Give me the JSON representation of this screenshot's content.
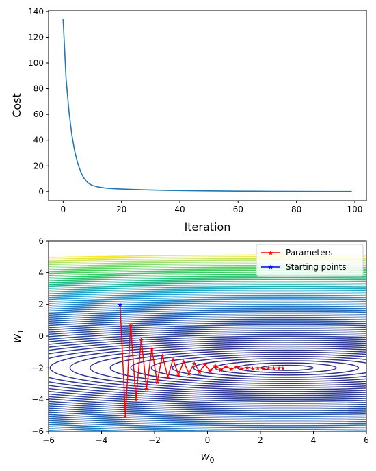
{
  "chart_data": [
    {
      "type": "line",
      "xlabel": "Iteration",
      "ylabel": "Cost",
      "xlim": [
        -5,
        104
      ],
      "ylim": [
        -7,
        141
      ],
      "xticks": [
        0,
        20,
        40,
        60,
        80,
        100
      ],
      "yticks": [
        0,
        20,
        40,
        60,
        80,
        100,
        120,
        140
      ],
      "grid": false,
      "series": [
        {
          "color": "#1f77b4",
          "x": [
            0,
            1,
            2,
            3,
            4,
            5,
            6,
            7,
            8,
            9,
            10,
            12,
            14,
            16,
            18,
            20,
            25,
            30,
            35,
            40,
            50,
            60,
            70,
            80,
            90,
            99
          ],
          "y": [
            134,
            88,
            62,
            44,
            31,
            22,
            15.5,
            11,
            8,
            6,
            4.8,
            3.6,
            2.9,
            2.5,
            2.2,
            2.0,
            1.6,
            1.3,
            1.05,
            0.85,
            0.55,
            0.35,
            0.22,
            0.14,
            0.09,
            0.06
          ]
        }
      ]
    },
    {
      "type": "contour",
      "xlabel": "w0",
      "ylabel": "w1",
      "xlim": [
        -6,
        6
      ],
      "ylim": [
        -6,
        6
      ],
      "xticks": [
        -6,
        -4,
        -2,
        0,
        2,
        4,
        6
      ],
      "yticks": [
        -6,
        -4,
        -2,
        0,
        2,
        4,
        6
      ],
      "grid": false,
      "contour_center": [
        3,
        -2
      ],
      "colormap": [
        "#30318d",
        "#2451a8",
        "#1f78c2",
        "#1f9fd4",
        "#21b29e",
        "#2fc46a",
        "#52d05c",
        "#a6e07a",
        "#fde725"
      ],
      "legend": {
        "placement": "upper-right",
        "entries": [
          {
            "label": "Parameters",
            "color": "#ff0000",
            "marker": "star"
          },
          {
            "label": "Starting points",
            "color": "#0000ff",
            "marker": "star"
          }
        ]
      },
      "series": [
        {
          "name": "Parameters",
          "color": "#ff0000",
          "x": [
            -3.3,
            -3.1,
            -2.9,
            -2.7,
            -2.5,
            -2.3,
            -2.1,
            -1.9,
            -1.7,
            -1.5,
            -1.3,
            -1.1,
            -0.9,
            -0.7,
            -0.5,
            -0.3,
            -0.1,
            0.1,
            0.3,
            0.5,
            0.7,
            0.9,
            1.1,
            1.3,
            1.5,
            1.7,
            1.9,
            2.1,
            2.3,
            2.5,
            2.7,
            2.85
          ],
          "y": [
            2.0,
            -5.0,
            0.7,
            -4.0,
            -0.2,
            -3.3,
            -0.8,
            -2.9,
            -1.2,
            -2.6,
            -1.45,
            -2.45,
            -1.6,
            -2.35,
            -1.7,
            -2.25,
            -1.8,
            -2.18,
            -1.85,
            -2.12,
            -1.9,
            -2.08,
            -1.93,
            -2.05,
            -1.96,
            -2.03,
            -1.98,
            -2.02,
            -1.99,
            -2.01,
            -2.0,
            -2.0
          ]
        },
        {
          "name": "Starting points",
          "color": "#0000ff",
          "x": [
            -3.3
          ],
          "y": [
            2.0
          ]
        }
      ]
    }
  ]
}
